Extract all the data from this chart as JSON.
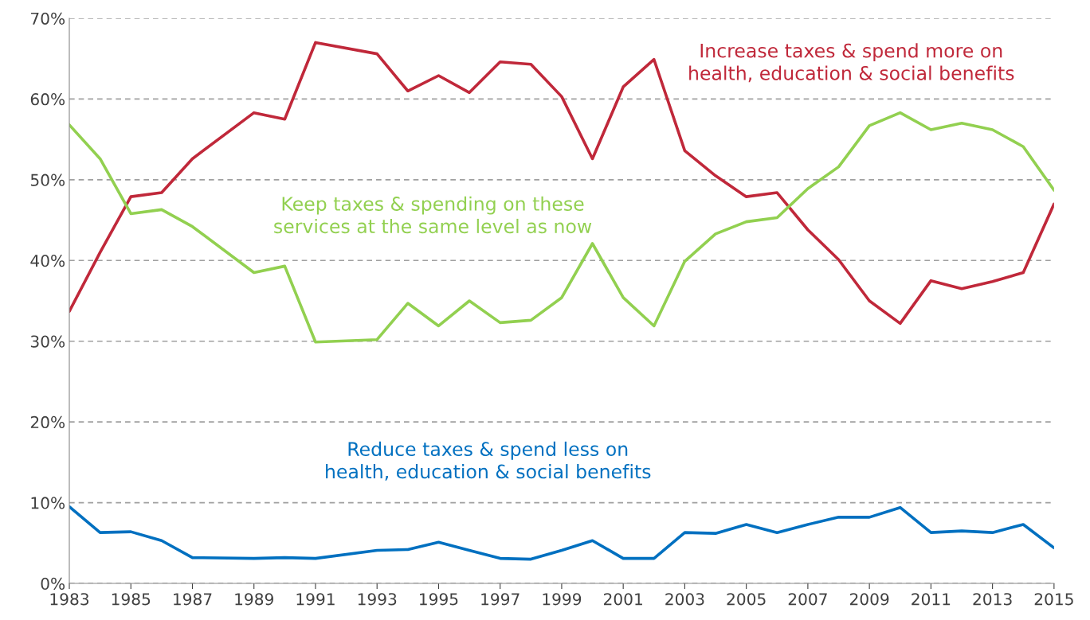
{
  "chart_data": {
    "type": "line",
    "xlim": [
      1983,
      2015
    ],
    "xticks": [
      1983,
      1985,
      1987,
      1989,
      1991,
      1993,
      1995,
      1997,
      1999,
      2001,
      2003,
      2005,
      2007,
      2009,
      2011,
      2013,
      2015
    ],
    "ylim": [
      0,
      70
    ],
    "yticks": [
      {
        "value": 0,
        "label": "0%"
      },
      {
        "value": 10,
        "label": "10%"
      },
      {
        "value": 20,
        "label": "20%"
      },
      {
        "value": 30,
        "label": "30%"
      },
      {
        "value": 40,
        "label": "40%"
      },
      {
        "value": 50,
        "label": "50%"
      },
      {
        "value": 60,
        "label": "60%"
      },
      {
        "value": 70,
        "label": "70%"
      }
    ],
    "grid": "y",
    "legend": false,
    "marker": "none",
    "line_style": "solid",
    "series": [
      {
        "name": "Increase taxes & spend more on\nhealth, education & social benefits",
        "color": "#c0283a",
        "x": [
          1983,
          1984,
          1985,
          1986,
          1987,
          1989,
          1990,
          1991,
          1993,
          1994,
          1995,
          1996,
          1997,
          1998,
          1999,
          2000,
          2001,
          2002,
          2003,
          2004,
          2005,
          2006,
          2007,
          2008,
          2009,
          2010,
          2011,
          2012,
          2013,
          2014,
          2015
        ],
        "values": [
          33.7,
          41,
          47.9,
          48.4,
          52.6,
          58.3,
          57.5,
          67,
          65.6,
          61,
          62.9,
          60.8,
          64.6,
          64.3,
          60.3,
          52.6,
          61.5,
          64.9,
          53.6,
          50.5,
          47.9,
          48.4,
          43.8,
          40.1,
          35,
          32.2,
          37.5,
          36.5,
          37.4,
          38.5,
          47
        ]
      },
      {
        "name": "Keep taxes & spending on these\nservices at the same level as now",
        "color": "#92d050",
        "x": [
          1983,
          1984,
          1985,
          1986,
          1987,
          1989,
          1990,
          1991,
          1993,
          1994,
          1995,
          1996,
          1997,
          1998,
          1999,
          2000,
          2001,
          2002,
          2003,
          2004,
          2005,
          2006,
          2007,
          2008,
          2009,
          2010,
          2011,
          2012,
          2013,
          2014,
          2015
        ],
        "values": [
          56.8,
          52.6,
          45.8,
          46.3,
          44.2,
          38.5,
          39.3,
          29.9,
          30.2,
          34.7,
          31.9,
          35,
          32.3,
          32.6,
          35.4,
          42.1,
          35.4,
          31.9,
          39.9,
          43.3,
          44.8,
          45.3,
          48.9,
          51.6,
          56.7,
          58.3,
          56.2,
          57,
          56.2,
          54.1,
          48.7
        ]
      },
      {
        "name": "Reduce taxes & spend less on\nhealth, education & social benefits",
        "color": "#0070c0",
        "x": [
          1983,
          1984,
          1985,
          1986,
          1987,
          1989,
          1990,
          1991,
          1993,
          1994,
          1995,
          1996,
          1997,
          1998,
          1999,
          2000,
          2001,
          2002,
          2003,
          2004,
          2005,
          2006,
          2007,
          2008,
          2009,
          2010,
          2011,
          2012,
          2013,
          2014,
          2015
        ],
        "values": [
          9.5,
          6.3,
          6.4,
          5.3,
          3.2,
          3.1,
          3.2,
          3.1,
          4.1,
          4.2,
          5.1,
          4.1,
          3.1,
          3.0,
          4.1,
          5.3,
          3.1,
          3.1,
          6.3,
          6.2,
          7.3,
          6.3,
          7.3,
          8.2,
          8.2,
          9.4,
          6.3,
          6.5,
          6.3,
          7.3,
          4.4
        ]
      }
    ]
  }
}
